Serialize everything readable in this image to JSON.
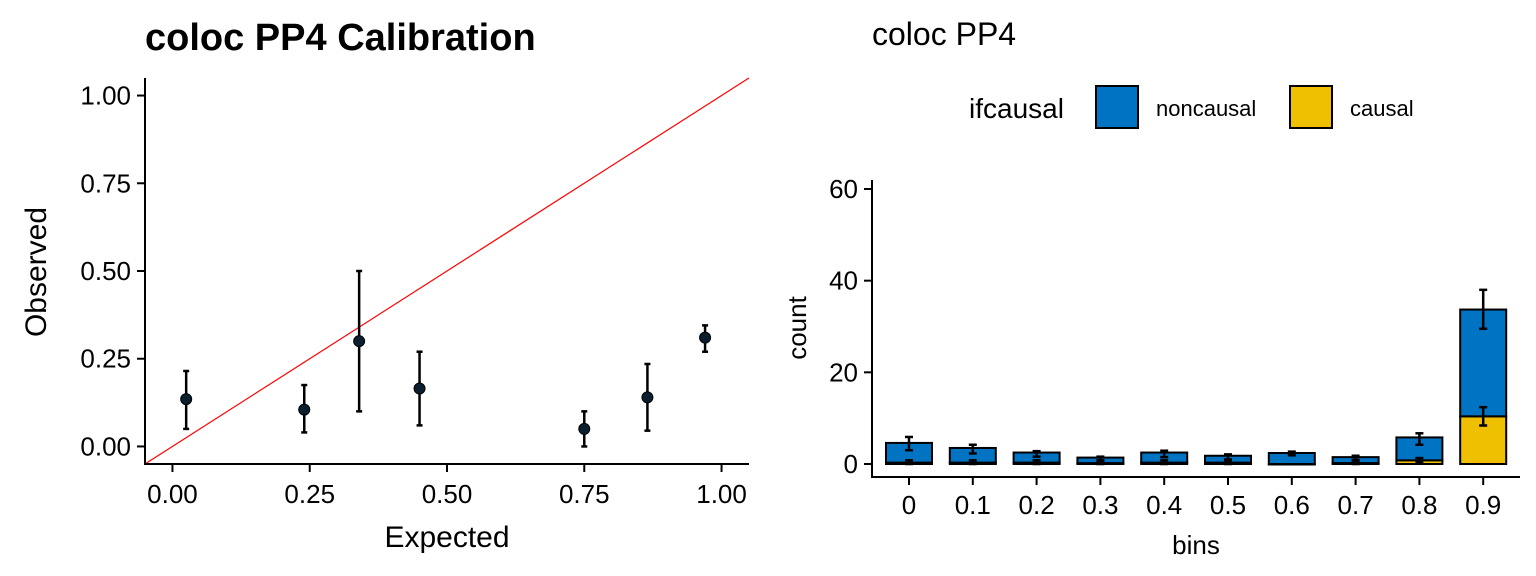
{
  "chart_data": [
    {
      "type": "scatter",
      "title": "coloc PP4 Calibration",
      "xlabel": "Expected",
      "ylabel": "Observed",
      "xlim": [
        -0.05,
        1.05
      ],
      "ylim": [
        -0.05,
        1.05
      ],
      "xticks": [
        "0.00",
        "0.25",
        "0.50",
        "0.75",
        "1.00"
      ],
      "yticks": [
        "0.00",
        "0.25",
        "0.50",
        "0.75",
        "1.00"
      ],
      "grid": false,
      "reference_line": {
        "slope": 1,
        "intercept": 0,
        "color": "#ff0000"
      },
      "points": [
        {
          "x": 0.025,
          "y": 0.135,
          "ymin": 0.05,
          "ymax": 0.215
        },
        {
          "x": 0.24,
          "y": 0.105,
          "ymin": 0.04,
          "ymax": 0.175
        },
        {
          "x": 0.34,
          "y": 0.3,
          "ymin": 0.1,
          "ymax": 0.5
        },
        {
          "x": 0.45,
          "y": 0.165,
          "ymin": 0.06,
          "ymax": 0.27
        },
        {
          "x": 0.75,
          "y": 0.05,
          "ymin": 0.0,
          "ymax": 0.1
        },
        {
          "x": 0.865,
          "y": 0.14,
          "ymin": 0.045,
          "ymax": 0.235
        },
        {
          "x": 0.97,
          "y": 0.31,
          "ymin": 0.27,
          "ymax": 0.345
        }
      ]
    },
    {
      "type": "bar",
      "stacked": true,
      "title": "coloc PP4",
      "xlabel": "bins",
      "ylabel": "count",
      "ylim": [
        0,
        60
      ],
      "yticks": [
        "0",
        "20",
        "40",
        "60"
      ],
      "grid": false,
      "legend": {
        "title": "ifcausal",
        "position": "top"
      },
      "categories": [
        "0",
        "0.1",
        "0.2",
        "0.3",
        "0.4",
        "0.5",
        "0.6",
        "0.7",
        "0.8",
        "0.9"
      ],
      "series": [
        {
          "name": "causal",
          "color": "#EFC000",
          "values": [
            0.3,
            0.3,
            0.3,
            0.2,
            0.3,
            0.3,
            0,
            0.2,
            0.8,
            10.4
          ],
          "err_low": [
            0,
            0,
            0,
            0,
            0,
            0,
            0,
            0,
            0.3,
            8.4
          ],
          "err_high": [
            0.8,
            0.8,
            0.8,
            0.6,
            0.8,
            0.8,
            0,
            0.6,
            1.3,
            12.4
          ]
        },
        {
          "name": "noncausal",
          "color": "#0073C2",
          "values": [
            4.3,
            3.2,
            2.2,
            1.2,
            2.2,
            1.5,
            2.4,
            1.3,
            5.0,
            23.3
          ],
          "err_low": [
            3.0,
            2.3,
            1.6,
            0.8,
            1.5,
            1.0,
            1.9,
            0.9,
            4.2,
            29.5
          ],
          "err_high": [
            5.9,
            4.2,
            2.8,
            1.6,
            2.9,
            2.1,
            2.7,
            1.8,
            6.7,
            38.0
          ]
        }
      ]
    }
  ],
  "left_chart": {
    "title": "coloc PP4 Calibration",
    "xlabel": "Expected",
    "ylabel": "Observed"
  },
  "right_chart": {
    "title": "coloc PP4",
    "xlabel": "bins",
    "ylabel": "count",
    "legend_title": "ifcausal",
    "legend_noncausal": "noncausal",
    "legend_causal": "causal"
  }
}
